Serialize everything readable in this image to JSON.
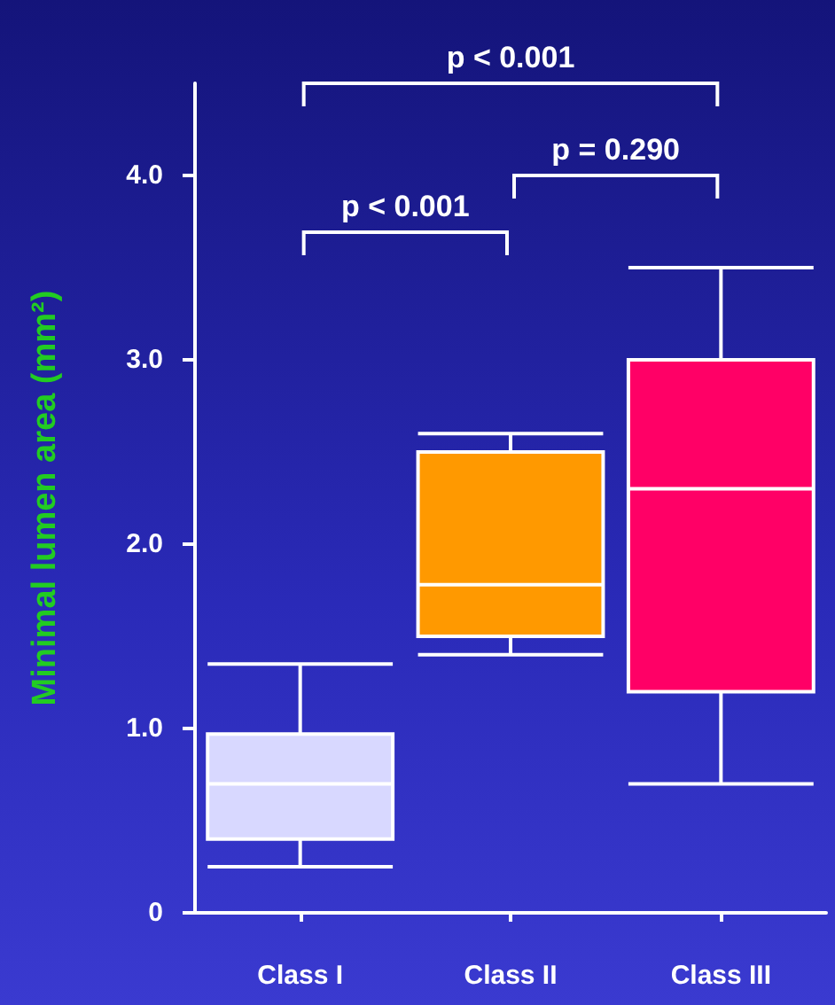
{
  "chart_data": {
    "type": "box",
    "ylabel": "Minimal lumen area (mm²)",
    "categories": [
      "Class I",
      "Class II",
      "Class III"
    ],
    "colors": [
      "#d8d8ff",
      "#ff9900",
      "#ff0066"
    ],
    "boxes": [
      {
        "low": 0.25,
        "q1": 0.4,
        "median": 0.7,
        "q3": 0.97,
        "high": 1.35
      },
      {
        "low": 1.4,
        "q1": 1.5,
        "median": 1.78,
        "q3": 2.5,
        "high": 2.6
      },
      {
        "low": 0.7,
        "q1": 1.2,
        "median": 2.3,
        "q3": 3.0,
        "high": 3.5
      }
    ],
    "ylim": [
      0,
      4.5
    ],
    "yticks": [
      0,
      {
        "value": 1,
        "label": "1.0"
      },
      {
        "value": 2,
        "label": "2.0"
      },
      {
        "value": 3,
        "label": "3.0"
      },
      {
        "value": 4,
        "label": "4.0"
      }
    ],
    "annotations": [
      "p < 0.001",
      "p < 0.001",
      "p = 0.290"
    ],
    "grid": false
  }
}
